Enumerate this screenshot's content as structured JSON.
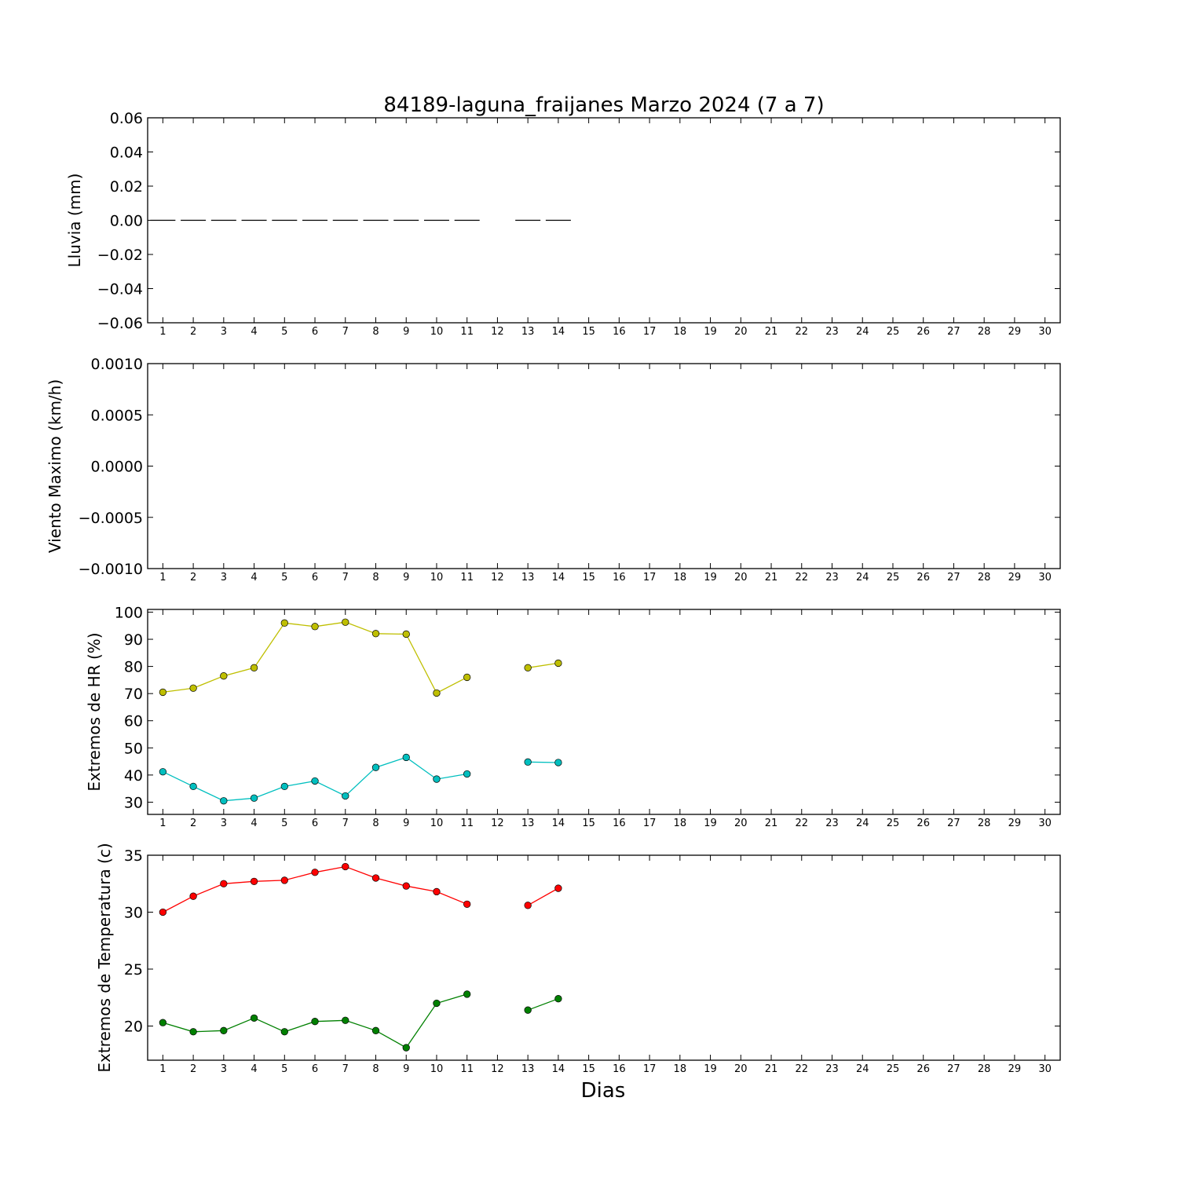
{
  "figure": {
    "title": "84189-laguna_fraijanes Marzo 2024  (7 a 7)",
    "xlabel": "Dias"
  },
  "chart_data": [
    {
      "type": "bar",
      "ylabel": "Lluvia (mm)",
      "ylim": [
        -0.06,
        0.06
      ],
      "yticks": [
        0.06,
        0.04,
        0.02,
        0.0,
        -0.02,
        -0.04,
        -0.06
      ],
      "ytick_labels": [
        "0.06",
        "0.04",
        "0.02",
        "0.00",
        "−0.02",
        "−0.04",
        "−0.06"
      ],
      "xlim": [
        0.5,
        30.5
      ],
      "x_ticks": [
        1,
        2,
        3,
        4,
        5,
        6,
        7,
        8,
        9,
        10,
        11,
        12,
        13,
        14,
        15,
        16,
        17,
        18,
        19,
        20,
        21,
        22,
        23,
        24,
        25,
        26,
        27,
        28,
        29,
        30
      ],
      "grid": false,
      "series": [
        {
          "color": "#000000",
          "x": [
            1,
            2,
            3,
            4,
            5,
            6,
            7,
            8,
            9,
            10,
            11,
            13,
            14
          ],
          "values": [
            0,
            0,
            0,
            0,
            0,
            0,
            0,
            0,
            0,
            0,
            0,
            0,
            0
          ]
        }
      ]
    },
    {
      "type": "line",
      "ylabel": "Viento Maximo (km/h)",
      "ylim": [
        -0.001,
        0.001
      ],
      "yticks": [
        0.001,
        0.0005,
        0.0,
        -0.0005,
        -0.001
      ],
      "ytick_labels": [
        "0.0010",
        "0.0005",
        "0.0000",
        "−0.0005",
        "−0.0010"
      ],
      "xlim": [
        0.5,
        30.5
      ],
      "x_ticks": [
        1,
        2,
        3,
        4,
        5,
        6,
        7,
        8,
        9,
        10,
        11,
        12,
        13,
        14,
        15,
        16,
        17,
        18,
        19,
        20,
        21,
        22,
        23,
        24,
        25,
        26,
        27,
        28,
        29,
        30
      ],
      "grid": false,
      "series": []
    },
    {
      "type": "line",
      "ylabel": "Extremos de HR (%)",
      "ylim": [
        25.5,
        101
      ],
      "yticks": [
        100,
        90,
        80,
        70,
        60,
        50,
        40,
        30
      ],
      "ytick_labels": [
        "100",
        "90",
        "80",
        "70",
        "60",
        "50",
        "40",
        "30"
      ],
      "xlim": [
        0.5,
        30.5
      ],
      "x_ticks": [
        1,
        2,
        3,
        4,
        5,
        6,
        7,
        8,
        9,
        10,
        11,
        12,
        13,
        14,
        15,
        16,
        17,
        18,
        19,
        20,
        21,
        22,
        23,
        24,
        25,
        26,
        27,
        28,
        29,
        30
      ],
      "grid": false,
      "series": [
        {
          "color": "#bfbf00",
          "x": [
            1,
            2,
            3,
            4,
            5,
            6,
            7,
            8,
            9,
            10,
            11,
            null,
            13,
            14
          ],
          "values": [
            70.5,
            72,
            76.5,
            79.5,
            96,
            94.7,
            96.3,
            92.1,
            91.9,
            70.2,
            76,
            null,
            79.5,
            81.2
          ]
        },
        {
          "color": "#00bfbf",
          "x": [
            1,
            2,
            3,
            4,
            5,
            6,
            7,
            8,
            9,
            10,
            11,
            null,
            13,
            14
          ],
          "values": [
            41.2,
            35.8,
            30.5,
            31.5,
            35.8,
            37.8,
            32.3,
            42.8,
            46.5,
            38.5,
            40.4,
            null,
            44.8,
            44.6
          ]
        }
      ]
    },
    {
      "type": "line",
      "ylabel": "Extremos de Temperatura (c)",
      "ylim": [
        17,
        35
      ],
      "yticks": [
        35,
        30,
        25,
        20
      ],
      "ytick_labels": [
        "35",
        "30",
        "25",
        "20"
      ],
      "xlim": [
        0.5,
        30.5
      ],
      "x_ticks": [
        1,
        2,
        3,
        4,
        5,
        6,
        7,
        8,
        9,
        10,
        11,
        12,
        13,
        14,
        15,
        16,
        17,
        18,
        19,
        20,
        21,
        22,
        23,
        24,
        25,
        26,
        27,
        28,
        29,
        30
      ],
      "grid": false,
      "series": [
        {
          "color": "#ff0000",
          "x": [
            1,
            2,
            3,
            4,
            5,
            6,
            7,
            8,
            9,
            10,
            11,
            null,
            13,
            14
          ],
          "values": [
            30,
            31.4,
            32.5,
            32.7,
            32.8,
            33.5,
            34,
            33,
            32.3,
            31.8,
            30.7,
            null,
            30.6,
            32.1
          ]
        },
        {
          "color": "#008000",
          "x": [
            1,
            2,
            3,
            4,
            5,
            6,
            7,
            8,
            9,
            10,
            11,
            null,
            13,
            14
          ],
          "values": [
            20.3,
            19.5,
            19.6,
            20.7,
            19.5,
            20.4,
            20.5,
            19.6,
            18.1,
            22,
            22.8,
            null,
            21.4,
            22.4
          ]
        }
      ]
    }
  ]
}
